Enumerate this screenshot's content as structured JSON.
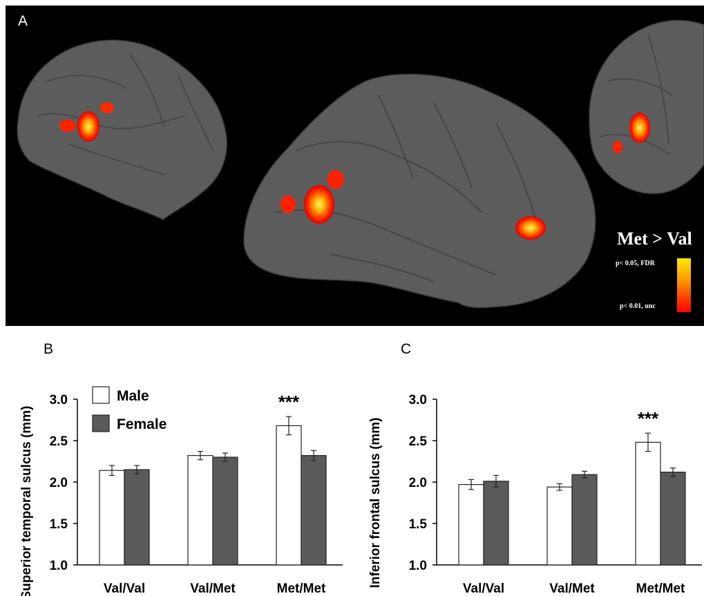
{
  "panel_a": {
    "label": "A",
    "contrast_title": "Met > Val",
    "colorbar": {
      "top_label": "p< 0.05, FDR",
      "bottom_label": "p< 0.01, unc",
      "top_color": "#ffe600",
      "bottom_color": "#ff0000"
    },
    "background_color": "#000000",
    "brain_color": "#5a5a5a"
  },
  "chart_data": [
    {
      "type": "bar",
      "panel_label": "B",
      "ylabel": "Superior temporal sulcus (mm)",
      "categories": [
        "Val/Val",
        "Val/Met",
        "Met/Met"
      ],
      "series": [
        {
          "name": "Male",
          "values": [
            2.14,
            2.32,
            2.68
          ],
          "errors": [
            0.06,
            0.05,
            0.11
          ],
          "color": "#ffffff"
        },
        {
          "name": "Female",
          "values": [
            2.15,
            2.3,
            2.32
          ],
          "errors": [
            0.05,
            0.05,
            0.06
          ],
          "color": "#5a5a5a"
        }
      ],
      "ylim": [
        1.0,
        3.0
      ],
      "yticks": [
        "1.0",
        "1.5",
        "2.0",
        "2.5",
        "3.0"
      ],
      "annotations": [
        {
          "text": "***",
          "category": "Met/Met"
        }
      ],
      "legend": "top-left"
    },
    {
      "type": "bar",
      "panel_label": "C",
      "ylabel": "Inferior frontal sulcus (mm)",
      "categories": [
        "Val/Val",
        "Val/Met",
        "Met/Met"
      ],
      "series": [
        {
          "name": "Male",
          "values": [
            1.97,
            1.94,
            2.48
          ],
          "errors": [
            0.06,
            0.04,
            0.11
          ],
          "color": "#ffffff"
        },
        {
          "name": "Female",
          "values": [
            2.01,
            2.09,
            2.12
          ],
          "errors": [
            0.07,
            0.04,
            0.05
          ],
          "color": "#5a5a5a"
        }
      ],
      "ylim": [
        1.0,
        3.0
      ],
      "yticks": [
        "1.0",
        "1.5",
        "2.0",
        "2.5",
        "3.0"
      ],
      "annotations": [
        {
          "text": "***",
          "category": "Met/Met"
        }
      ],
      "legend": "none"
    }
  ]
}
